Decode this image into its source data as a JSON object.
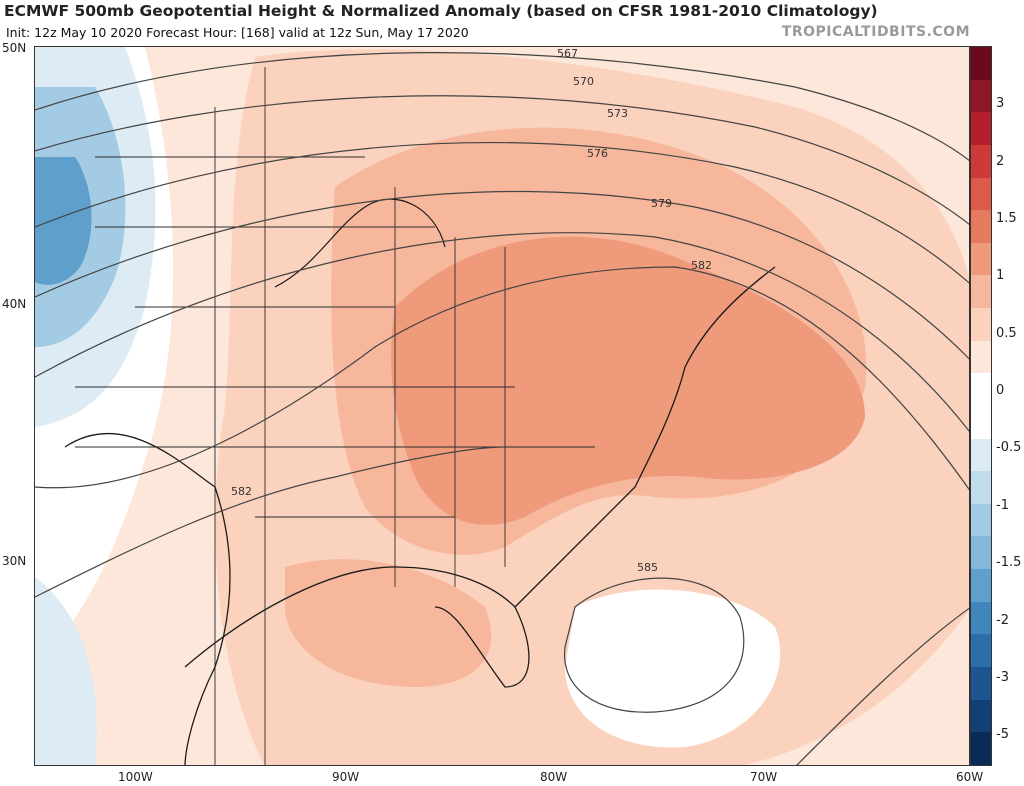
{
  "header": {
    "title": "ECMWF 500mb Geopotential Height & Normalized Anomaly (based on CFSR 1981-2010 Climatology)",
    "subtitle": "Init: 12z May 10 2020   Forecast Hour: [168]   valid at 12z Sun, May 17 2020",
    "brand": "TROPICALTIDBITS.COM"
  },
  "axes": {
    "lat_labels": [
      "50N",
      "40N",
      "30N"
    ],
    "lon_labels": [
      "100W",
      "90W",
      "80W",
      "70W",
      "60W"
    ]
  },
  "contours": {
    "labels": [
      "567",
      "570",
      "573",
      "576",
      "579",
      "582",
      "582",
      "585"
    ]
  },
  "colorbar": {
    "labels": [
      "3",
      "2",
      "1.5",
      "1",
      "0.5",
      "0",
      "-0.5",
      "-1",
      "-1.5",
      "-2",
      "-3",
      "-5"
    ],
    "colors": [
      "#6b0a1a",
      "#8f1626",
      "#b3202c",
      "#cc3a3a",
      "#dc5a4a",
      "#e67a5e",
      "#f09a7c",
      "#f7b79c",
      "#fbd2bd",
      "#fde6da",
      "#ffffff",
      "#ffffff",
      "#dcebf4",
      "#c1dcec",
      "#a3cbe3",
      "#83b8da",
      "#5e9fcb",
      "#3f86bc",
      "#2b6ea8",
      "#1c5590",
      "#123f75",
      "#0a2a58"
    ]
  }
}
